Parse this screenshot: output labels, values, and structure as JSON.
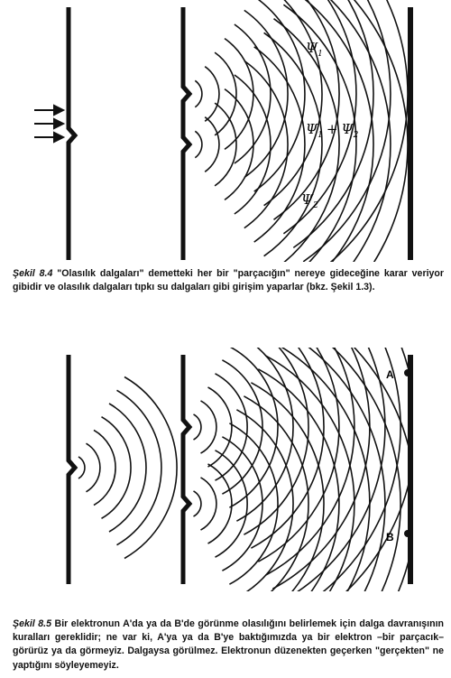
{
  "figure1": {
    "labels": {
      "psi": "Ψ",
      "psi1_sub": "1",
      "psi2_sub": "2",
      "plus": "+"
    },
    "caption_label": "Şekil 8.4",
    "caption_text": "\"Olasılık dalgaları\" demetteki her bir \"parçacığın\" nereye gideceğine karar veriyor gibidir ve olasılık dalgaları tıpkı su dalgaları gibi girişim yaparlar (bkz. Şekil 1.3)."
  },
  "figure2": {
    "labels": {
      "point_a": "A",
      "point_b": "B"
    },
    "caption_label": "Şekil 8.5",
    "caption_text": "Bir elektronun A'da ya da B'de görünme olasılığını belirlemek için dalga davranışının kuralları gereklidir; ne var ki, A'ya ya da B'ye baktığımızda ya bir elektron –bir parçacık– görürüz ya da görmeyiz. Dalgaysa görülmez. Elektronun düzenekten geçerken \"gerçekten\" ne yaptığını söyleyemeyiz."
  },
  "colors": {
    "ink": "#111111",
    "paper": "#ffffff"
  }
}
